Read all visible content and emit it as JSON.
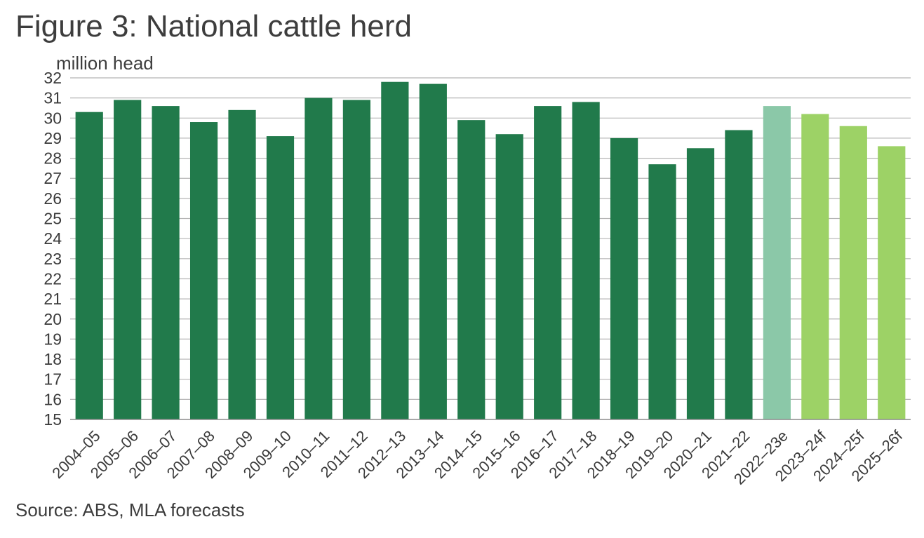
{
  "title": "Figure 3: National cattle herd",
  "unit_label": "million head",
  "source": "Source: ABS, MLA forecasts",
  "colors": {
    "actual": "#217a4b",
    "estimate": "#8bc8a8",
    "forecast": "#9dd266",
    "grid": "#b5b5b5",
    "axis": "#8c8c8c"
  },
  "chart_data": {
    "type": "bar",
    "title": "Figure 3: National cattle herd",
    "ylabel": "million head",
    "xlabel": "",
    "ylim": [
      15,
      32
    ],
    "yticks": [
      15,
      16,
      17,
      18,
      19,
      20,
      21,
      22,
      23,
      24,
      25,
      26,
      27,
      28,
      29,
      30,
      31,
      32
    ],
    "grid": true,
    "categories": [
      "2004–05",
      "2005–06",
      "2006–07",
      "2007–08",
      "2008–09",
      "2009–10",
      "2010–11",
      "2011–12",
      "2012–13",
      "2013–14",
      "2014–15",
      "2015–16",
      "2016–17",
      "2017–18",
      "2018–19",
      "2019–20",
      "2020–21",
      "2021–22",
      "2022–23e",
      "2023–24f",
      "2024–25f",
      "2025–26f"
    ],
    "values": [
      30.3,
      30.9,
      30.6,
      29.8,
      30.4,
      29.1,
      31.0,
      30.9,
      31.8,
      31.7,
      29.9,
      29.2,
      30.6,
      30.8,
      29.0,
      27.7,
      28.5,
      29.4,
      30.6,
      30.2,
      29.6,
      28.6
    ],
    "status": [
      "actual",
      "actual",
      "actual",
      "actual",
      "actual",
      "actual",
      "actual",
      "actual",
      "actual",
      "actual",
      "actual",
      "actual",
      "actual",
      "actual",
      "actual",
      "actual",
      "actual",
      "actual",
      "estimate",
      "forecast",
      "forecast",
      "forecast"
    ]
  }
}
